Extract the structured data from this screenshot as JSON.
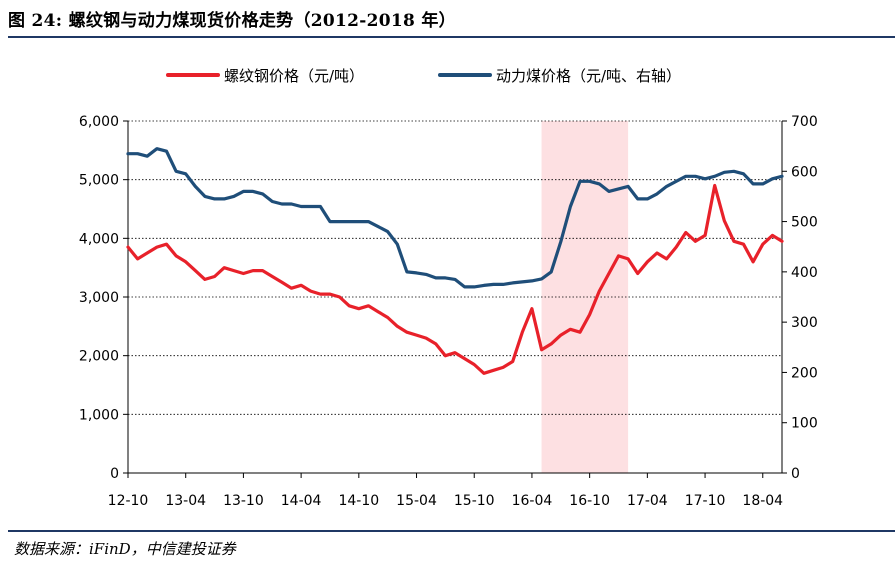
{
  "header": {
    "title": "图 24: 螺纹钢与动力煤现货价格走势（2012-2018 年）"
  },
  "footer": {
    "source": "数据来源：iFinD，中信建投证券"
  },
  "colors": {
    "rebar": "#e8212a",
    "coal": "#1f4e79",
    "shade": "#fde0e2",
    "rule": "#1f3864"
  },
  "chart_data": {
    "type": "line",
    "x_tick_labels": [
      "12-10",
      "13-04",
      "13-10",
      "14-04",
      "14-10",
      "15-04",
      "15-10",
      "16-04",
      "16-10",
      "17-04",
      "17-10",
      "18-04"
    ],
    "x_range": [
      "2012-10",
      "2018-06"
    ],
    "y_left": {
      "min": 0,
      "max": 6000,
      "ticks": [
        "0",
        "1,000",
        "2,000",
        "3,000",
        "4,000",
        "5,000",
        "6,000"
      ]
    },
    "y_right": {
      "min": 0,
      "max": 700,
      "ticks": [
        "0",
        "100",
        "200",
        "300",
        "400",
        "500",
        "600",
        "700"
      ]
    },
    "grid": "horizontal dotted",
    "legend_position": "top",
    "shaded_region": {
      "from": "2016-05",
      "to": "2017-02"
    },
    "series": [
      {
        "name": "螺纹钢价格（元/吨）",
        "axis": "left",
        "points": [
          [
            "2012-10",
            3850
          ],
          [
            "2012-11",
            3650
          ],
          [
            "2012-12",
            3750
          ],
          [
            "2013-01",
            3850
          ],
          [
            "2013-02",
            3900
          ],
          [
            "2013-03",
            3700
          ],
          [
            "2013-04",
            3600
          ],
          [
            "2013-05",
            3450
          ],
          [
            "2013-06",
            3300
          ],
          [
            "2013-07",
            3350
          ],
          [
            "2013-08",
            3500
          ],
          [
            "2013-09",
            3450
          ],
          [
            "2013-10",
            3400
          ],
          [
            "2013-11",
            3450
          ],
          [
            "2013-12",
            3450
          ],
          [
            "2014-01",
            3350
          ],
          [
            "2014-02",
            3250
          ],
          [
            "2014-03",
            3150
          ],
          [
            "2014-04",
            3200
          ],
          [
            "2014-05",
            3100
          ],
          [
            "2014-06",
            3050
          ],
          [
            "2014-07",
            3050
          ],
          [
            "2014-08",
            3000
          ],
          [
            "2014-09",
            2850
          ],
          [
            "2014-10",
            2800
          ],
          [
            "2014-11",
            2850
          ],
          [
            "2014-12",
            2750
          ],
          [
            "2015-01",
            2650
          ],
          [
            "2015-02",
            2500
          ],
          [
            "2015-03",
            2400
          ],
          [
            "2015-04",
            2350
          ],
          [
            "2015-05",
            2300
          ],
          [
            "2015-06",
            2200
          ],
          [
            "2015-07",
            2000
          ],
          [
            "2015-08",
            2050
          ],
          [
            "2015-09",
            1950
          ],
          [
            "2015-10",
            1850
          ],
          [
            "2015-11",
            1700
          ],
          [
            "2015-12",
            1750
          ],
          [
            "2016-01",
            1800
          ],
          [
            "2016-02",
            1900
          ],
          [
            "2016-03",
            2400
          ],
          [
            "2016-04",
            2800
          ],
          [
            "2016-05",
            2100
          ],
          [
            "2016-06",
            2200
          ],
          [
            "2016-07",
            2350
          ],
          [
            "2016-08",
            2450
          ],
          [
            "2016-09",
            2400
          ],
          [
            "2016-10",
            2700
          ],
          [
            "2016-11",
            3100
          ],
          [
            "2016-12",
            3400
          ],
          [
            "2017-01",
            3700
          ],
          [
            "2017-02",
            3650
          ],
          [
            "2017-03",
            3400
          ],
          [
            "2017-04",
            3600
          ],
          [
            "2017-05",
            3750
          ],
          [
            "2017-06",
            3650
          ],
          [
            "2017-07",
            3850
          ],
          [
            "2017-08",
            4100
          ],
          [
            "2017-09",
            3950
          ],
          [
            "2017-10",
            4050
          ],
          [
            "2017-11",
            4900
          ],
          [
            "2017-12",
            4300
          ],
          [
            "2018-01",
            3950
          ],
          [
            "2018-02",
            3900
          ],
          [
            "2018-03",
            3600
          ],
          [
            "2018-04",
            3900
          ],
          [
            "2018-05",
            4050
          ],
          [
            "2018-06",
            3950
          ]
        ]
      },
      {
        "name": "动力煤价格（元/吨、右轴）",
        "axis": "right",
        "points": [
          [
            "2012-10",
            635
          ],
          [
            "2012-11",
            635
          ],
          [
            "2012-12",
            630
          ],
          [
            "2013-01",
            645
          ],
          [
            "2013-02",
            640
          ],
          [
            "2013-03",
            600
          ],
          [
            "2013-04",
            595
          ],
          [
            "2013-05",
            570
          ],
          [
            "2013-06",
            550
          ],
          [
            "2013-07",
            545
          ],
          [
            "2013-08",
            545
          ],
          [
            "2013-09",
            550
          ],
          [
            "2013-10",
            560
          ],
          [
            "2013-11",
            560
          ],
          [
            "2013-12",
            555
          ],
          [
            "2014-01",
            540
          ],
          [
            "2014-02",
            535
          ],
          [
            "2014-03",
            535
          ],
          [
            "2014-04",
            530
          ],
          [
            "2014-05",
            530
          ],
          [
            "2014-06",
            530
          ],
          [
            "2014-07",
            500
          ],
          [
            "2014-08",
            500
          ],
          [
            "2014-09",
            500
          ],
          [
            "2014-10",
            500
          ],
          [
            "2014-11",
            500
          ],
          [
            "2014-12",
            490
          ],
          [
            "2015-01",
            480
          ],
          [
            "2015-02",
            455
          ],
          [
            "2015-03",
            400
          ],
          [
            "2015-04",
            398
          ],
          [
            "2015-05",
            395
          ],
          [
            "2015-06",
            388
          ],
          [
            "2015-07",
            388
          ],
          [
            "2015-08",
            385
          ],
          [
            "2015-09",
            370
          ],
          [
            "2015-10",
            370
          ],
          [
            "2015-11",
            373
          ],
          [
            "2015-12",
            375
          ],
          [
            "2016-01",
            375
          ],
          [
            "2016-02",
            378
          ],
          [
            "2016-03",
            380
          ],
          [
            "2016-04",
            382
          ],
          [
            "2016-05",
            386
          ],
          [
            "2016-06",
            400
          ],
          [
            "2016-07",
            460
          ],
          [
            "2016-08",
            530
          ],
          [
            "2016-09",
            580
          ],
          [
            "2016-10",
            580
          ],
          [
            "2016-11",
            575
          ],
          [
            "2016-12",
            560
          ],
          [
            "2017-01",
            565
          ],
          [
            "2017-02",
            570
          ],
          [
            "2017-03",
            545
          ],
          [
            "2017-04",
            545
          ],
          [
            "2017-05",
            555
          ],
          [
            "2017-06",
            570
          ],
          [
            "2017-07",
            580
          ],
          [
            "2017-08",
            590
          ],
          [
            "2017-09",
            590
          ],
          [
            "2017-10",
            585
          ],
          [
            "2017-11",
            590
          ],
          [
            "2017-12",
            598
          ],
          [
            "2018-01",
            600
          ],
          [
            "2018-02",
            595
          ],
          [
            "2018-03",
            575
          ],
          [
            "2018-04",
            575
          ],
          [
            "2018-05",
            585
          ],
          [
            "2018-06",
            590
          ]
        ]
      }
    ]
  }
}
